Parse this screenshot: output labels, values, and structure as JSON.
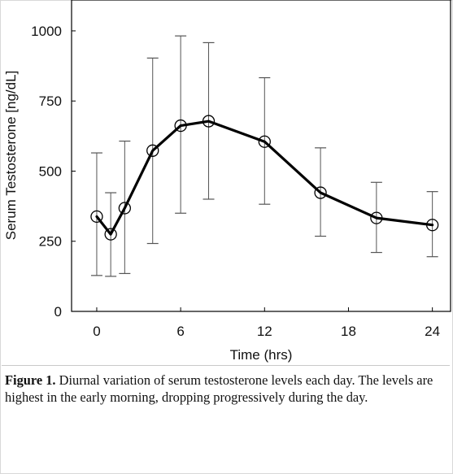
{
  "chart_data": {
    "type": "line",
    "title": "",
    "xlabel": "Time (hrs)",
    "ylabel": "Serum Testosterone [ng/dL]",
    "xlim": [
      -1.8,
      25.3
    ],
    "ylim": [
      0,
      1110
    ],
    "xticks": [
      0,
      6,
      12,
      18,
      24
    ],
    "yticks": [
      0,
      250,
      500,
      750,
      1000
    ],
    "grid": false,
    "legend": "none",
    "marker": "open-circle",
    "line_color": "#000000",
    "series": [
      {
        "x": [
          0,
          1,
          2,
          4,
          6,
          8,
          12,
          16,
          20,
          24
        ],
        "y": [
          338,
          275,
          368,
          573,
          662,
          678,
          605,
          423,
          333,
          308
        ],
        "err_low": [
          128,
          125,
          135,
          242,
          350,
          400,
          382,
          268,
          210,
          195
        ],
        "err_high": [
          565,
          423,
          607,
          903,
          982,
          958,
          833,
          583,
          460,
          427
        ]
      }
    ]
  },
  "caption": {
    "label": "Figure 1.",
    "text": "Diurnal variation of serum testosterone levels each day. The levels are highest in the early morning, dropping progressively during the day."
  }
}
